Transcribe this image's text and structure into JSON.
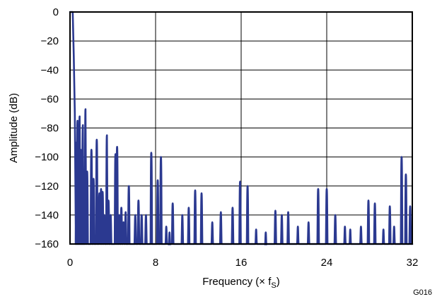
{
  "chart_data": {
    "type": "line",
    "title": "",
    "xlabel_main": "Frequency (× f",
    "xlabel_sub": "S",
    "xlabel_close": ")",
    "ylabel": "Amplitude (dB)",
    "figure_code": "G016",
    "xlim": [
      0,
      32
    ],
    "ylim": [
      -160,
      0
    ],
    "xticks": [
      0,
      8,
      16,
      24,
      32
    ],
    "xtick_labels": [
      "0",
      "8",
      "16",
      "24",
      "32"
    ],
    "yticks": [
      0,
      -20,
      -40,
      -60,
      -80,
      -100,
      -120,
      -140,
      -160
    ],
    "ytick_labels": [
      "0",
      "−20",
      "−40",
      "−60",
      "−80",
      "−100",
      "−120",
      "−140",
      "−160"
    ],
    "grid": true,
    "line_color": "#2b3990",
    "passband": [
      [
        0.0,
        0
      ],
      [
        0.25,
        0
      ],
      [
        0.35,
        -30
      ],
      [
        0.45,
        -70
      ],
      [
        0.55,
        -160
      ]
    ],
    "lobes": [
      [
        0.6,
        -90
      ],
      [
        0.7,
        -75
      ],
      [
        0.8,
        -100
      ],
      [
        0.9,
        -72
      ],
      [
        1.0,
        -95
      ],
      [
        1.1,
        -105
      ],
      [
        1.2,
        -78
      ],
      [
        1.3,
        -118
      ],
      [
        1.45,
        -67
      ],
      [
        1.6,
        -110
      ],
      [
        2.0,
        -95
      ],
      [
        2.2,
        -115
      ],
      [
        2.5,
        -88
      ],
      [
        2.75,
        -125
      ],
      [
        2.9,
        -122
      ],
      [
        3.05,
        -124
      ],
      [
        3.2,
        -140
      ],
      [
        3.45,
        -85
      ],
      [
        3.6,
        -130
      ],
      [
        3.8,
        -140
      ],
      [
        4.25,
        -98
      ],
      [
        4.4,
        -93
      ],
      [
        4.6,
        -140
      ],
      [
        4.8,
        -135
      ],
      [
        5.0,
        -145
      ],
      [
        5.2,
        -138
      ],
      [
        5.5,
        -120
      ],
      [
        6.1,
        -140
      ],
      [
        6.4,
        -130
      ],
      [
        6.7,
        -140
      ],
      [
        7.1,
        -140
      ],
      [
        7.6,
        -97
      ],
      [
        8.2,
        -116
      ],
      [
        8.5,
        -100
      ],
      [
        9.0,
        -148
      ],
      [
        9.3,
        -152
      ],
      [
        9.6,
        -132
      ],
      [
        10.5,
        -140
      ],
      [
        11.1,
        -135
      ],
      [
        11.7,
        -123
      ],
      [
        12.3,
        -125
      ],
      [
        13.3,
        -145
      ],
      [
        14.1,
        -138
      ],
      [
        15.2,
        -135
      ],
      [
        15.9,
        -117
      ],
      [
        16.6,
        -120
      ],
      [
        17.4,
        -150
      ],
      [
        18.3,
        -152
      ],
      [
        19.2,
        -137
      ],
      [
        19.8,
        -140
      ],
      [
        20.4,
        -138
      ],
      [
        21.3,
        -148
      ],
      [
        22.3,
        -145
      ],
      [
        23.2,
        -122
      ],
      [
        24.0,
        -122
      ],
      [
        24.8,
        -140
      ],
      [
        25.7,
        -148
      ],
      [
        26.2,
        -150
      ],
      [
        27.2,
        -148
      ],
      [
        27.9,
        -130
      ],
      [
        28.5,
        -132
      ],
      [
        29.3,
        -150
      ],
      [
        29.9,
        -134
      ],
      [
        30.3,
        -148
      ],
      [
        31.0,
        -100
      ],
      [
        31.4,
        -112
      ],
      [
        31.8,
        -134
      ]
    ]
  }
}
